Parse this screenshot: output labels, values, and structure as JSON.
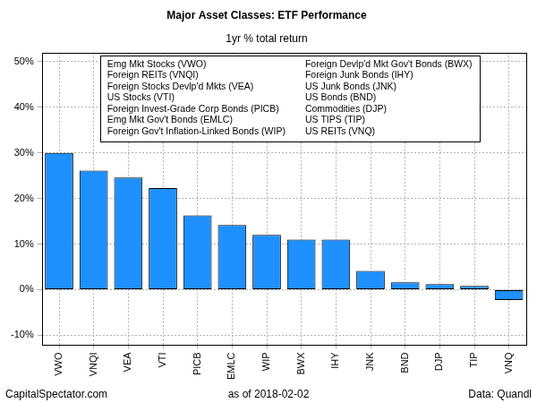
{
  "chart_data": {
    "type": "bar",
    "title": "Major Asset Classes: ETF Performance",
    "subtitle": "1yr % total return",
    "categories": [
      "VWO",
      "VNQI",
      "VEA",
      "VTI",
      "PICB",
      "EMLC",
      "WIP",
      "BWX",
      "IHY",
      "JNK",
      "BND",
      "DJP",
      "TIP",
      "VNQ"
    ],
    "values": [
      30.0,
      26.1,
      24.6,
      22.3,
      16.3,
      14.2,
      12.0,
      11.0,
      11.0,
      4.1,
      1.6,
      1.2,
      0.8,
      -2.3
    ],
    "color": "#1e90ff",
    "ylim": [
      -12,
      52
    ],
    "yticks": [
      {
        "value": -10,
        "label": "-10%"
      },
      {
        "value": 0,
        "label": "0%"
      },
      {
        "value": 10,
        "label": "10%"
      },
      {
        "value": 20,
        "label": "20%"
      },
      {
        "value": 30,
        "label": "30%"
      },
      {
        "value": 40,
        "label": "40%"
      },
      {
        "value": 50,
        "label": "50%"
      }
    ],
    "grid": true,
    "annotations": [
      "Emg Mkt Stocks (VWO)",
      "Foreign REITs (VNQI)",
      "Foreign Stocks Devlp'd Mkts (VEA)",
      "US Stocks (VTI)",
      "Foreign Invest-Grade Corp Bonds (PICB)",
      "Emg Mkt Gov't Bonds (EMLC)",
      "Foreign Gov't Inflation-Linked Bonds (WIP)",
      "Foreign Devlp'd Mkt Gov't Bonds (BWX)",
      "Foreign Junk Bonds (IHY)",
      "US Junk Bonds (JNK)",
      "US Bonds (BND)",
      "Commodities (DJP)",
      "US TIPS (TIP)",
      "US REITs (VNQ)"
    ],
    "footer": [
      "CapitalSpectator.com",
      "as of 2018-02-02",
      "Data: Quandl"
    ]
  }
}
